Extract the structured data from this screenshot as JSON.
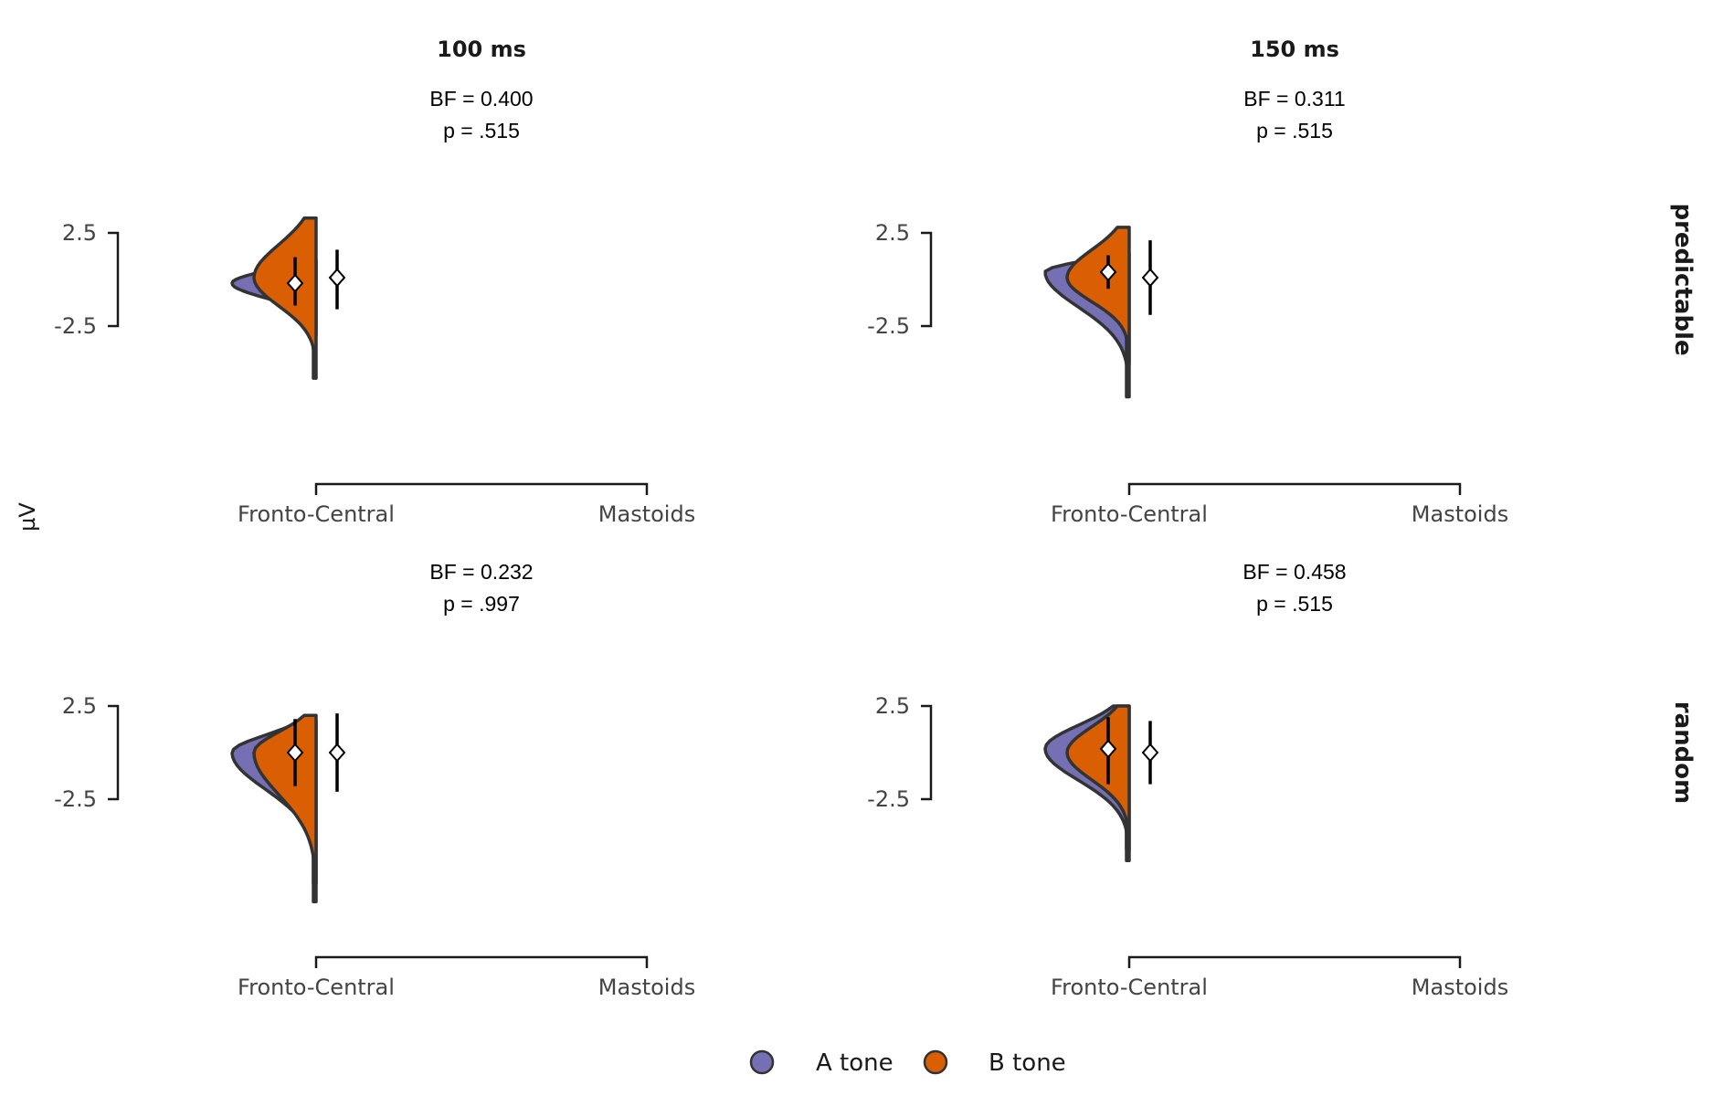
{
  "chart_data": [
    {
      "type": "violin",
      "panel": "predictable-100ms",
      "column_title": "100 ms",
      "row_label": "predictable",
      "bf_text": "BF = 0.400",
      "p_text": "p = .515",
      "categories": [
        "Fronto-Central",
        "Mastoids"
      ],
      "yticks": [
        "2.5",
        "-2.5"
      ],
      "series": [
        {
          "name": "A tone",
          "category": "Fronto-Central",
          "mean": -0.2,
          "ci": [
            -1.4,
            1.2
          ],
          "range": [
            -3.0,
            1.0
          ]
        },
        {
          "name": "B tone",
          "category": "Fronto-Central",
          "mean": 0.1,
          "ci": [
            -1.6,
            1.6
          ],
          "range": [
            -5.3,
            3.3
          ]
        }
      ]
    },
    {
      "type": "violin",
      "panel": "predictable-150ms",
      "column_title": "150 ms",
      "row_label": "predictable",
      "bf_text": "BF = 0.311",
      "p_text": "p = .515",
      "categories": [
        "Fronto-Central",
        "Mastoids"
      ],
      "yticks": [
        "2.5",
        "-2.5"
      ],
      "series": [
        {
          "name": "A tone",
          "category": "Fronto-Central",
          "mean": 0.4,
          "ci": [
            -0.5,
            1.3
          ],
          "range": [
            -6.3,
            1.4
          ]
        },
        {
          "name": "B tone",
          "category": "Fronto-Central",
          "mean": 0.1,
          "ci": [
            -1.9,
            2.1
          ],
          "range": [
            -4.5,
            2.8
          ]
        }
      ]
    },
    {
      "type": "violin",
      "panel": "random-100ms",
      "column_title": "",
      "row_label": "random",
      "bf_text": "BF = 0.232",
      "p_text": "p = .997",
      "categories": [
        "Fronto-Central",
        "Mastoids"
      ],
      "yticks": [
        "2.5",
        "-2.5"
      ],
      "series": [
        {
          "name": "A tone",
          "category": "Fronto-Central",
          "mean": 0.0,
          "ci": [
            -1.8,
            1.8
          ],
          "range": [
            -7.0,
            1.7
          ]
        },
        {
          "name": "B tone",
          "category": "Fronto-Central",
          "mean": 0.0,
          "ci": [
            -2.1,
            2.1
          ],
          "range": [
            -8.0,
            2.0
          ]
        }
      ]
    },
    {
      "type": "violin",
      "panel": "random-150ms",
      "column_title": "",
      "row_label": "random",
      "bf_text": "BF = 0.458",
      "p_text": "p = .515",
      "categories": [
        "Fronto-Central",
        "Mastoids"
      ],
      "yticks": [
        "2.5",
        "-2.5"
      ],
      "series": [
        {
          "name": "A tone",
          "category": "Fronto-Central",
          "mean": 0.2,
          "ci": [
            -1.7,
            1.9
          ],
          "range": [
            -5.8,
            2.5
          ]
        },
        {
          "name": "B tone",
          "category": "Fronto-Central",
          "mean": 0.0,
          "ci": [
            -1.7,
            1.7
          ],
          "range": [
            -5.2,
            2.5
          ]
        }
      ]
    }
  ],
  "y_axis_label": "µV",
  "legend": [
    {
      "label": "A tone",
      "color": "#7570b3"
    },
    {
      "label": "B tone",
      "color": "#d95f02"
    }
  ],
  "colors": {
    "a_tone": "#7570b3",
    "b_tone": "#d95f02",
    "outline": "#333333",
    "marker": "#ffffff"
  }
}
